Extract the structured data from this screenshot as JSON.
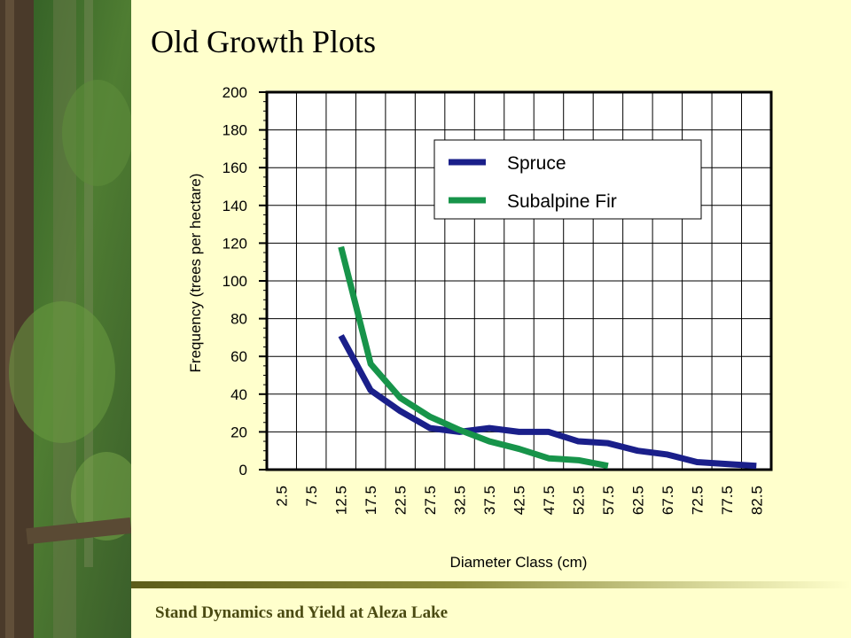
{
  "slide": {
    "title": "Old Growth Plots",
    "footer": "Stand Dynamics and Yield at Aleza Lake"
  },
  "colors": {
    "background": "#ffffcc",
    "spruce": "#1a1f8a",
    "subalpine_fir": "#17944a"
  },
  "chart_data": {
    "type": "line",
    "xlabel": "Diameter Class (cm)",
    "ylabel": "Frequency (trees per hectare)",
    "ylim": [
      0,
      200
    ],
    "yticks": [
      0,
      20,
      40,
      60,
      80,
      100,
      120,
      140,
      160,
      180,
      200
    ],
    "categories": [
      "2.5",
      "7.5",
      "12.5",
      "17.5",
      "22.5",
      "27.5",
      "32.5",
      "37.5",
      "42.5",
      "47.5",
      "52.5",
      "57.5",
      "62.5",
      "67.5",
      "72.5",
      "77.5",
      "82.5"
    ],
    "grid": true,
    "legend_position": "top-right",
    "series": [
      {
        "name": "Spruce",
        "color": "#1a1f8a",
        "values": [
          null,
          null,
          71,
          42,
          31,
          22,
          20,
          22,
          20,
          20,
          15,
          14,
          10,
          8,
          4,
          3,
          2
        ]
      },
      {
        "name": "Subalpine Fir",
        "color": "#17944a",
        "values": [
          null,
          null,
          118,
          56,
          38,
          28,
          21,
          15,
          11,
          6,
          5,
          2,
          null,
          null,
          null,
          null,
          null
        ]
      }
    ]
  }
}
